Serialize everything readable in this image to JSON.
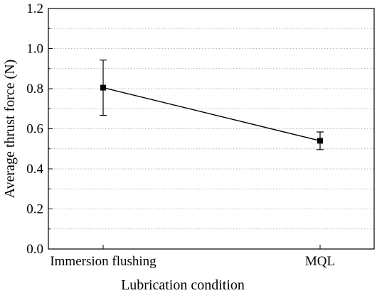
{
  "chart_data": {
    "type": "line",
    "title": "",
    "xlabel": "Lubrication condition",
    "ylabel": "Average thrust force (N)",
    "categories": [
      "Immersion flushing",
      "MQL"
    ],
    "series": [
      {
        "values": [
          0.805,
          0.54
        ],
        "error": [
          0.138,
          0.044
        ],
        "marker": "square",
        "color": "#000000"
      }
    ],
    "ylim": [
      0,
      1.2
    ],
    "yticks": [
      "0.0",
      "0.2",
      "0.4",
      "0.6",
      "0.8",
      "1.0",
      "1.2"
    ],
    "grid": "dotted horizontal at minor ticks (every 0.1)"
  }
}
